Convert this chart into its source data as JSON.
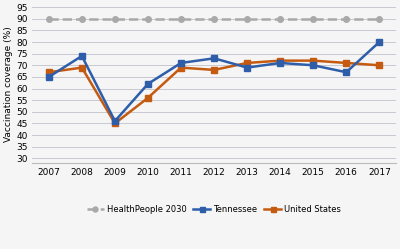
{
  "years": [
    2007,
    2008,
    2009,
    2010,
    2011,
    2012,
    2013,
    2014,
    2015,
    2016,
    2017
  ],
  "tennessee": [
    65,
    74,
    46,
    62,
    71,
    73,
    69,
    71,
    70,
    67,
    80
  ],
  "united_states": [
    67,
    69,
    45,
    56,
    69,
    68,
    71,
    72,
    72,
    71,
    70
  ],
  "health_people_2030": [
    90,
    90,
    90,
    90,
    90,
    90,
    90,
    90,
    90,
    90,
    90
  ],
  "tennessee_color": "#2E5EAA",
  "us_color": "#C55A11",
  "hp_color": "#A9A9A9",
  "ylabel": "Vaccination coverage (%)",
  "ylim": [
    28,
    96
  ],
  "yticks": [
    30,
    35,
    40,
    45,
    50,
    55,
    60,
    65,
    70,
    75,
    80,
    85,
    90,
    95
  ],
  "legend_labels": [
    "Tennessee",
    "United States",
    "HealthPeople 2030"
  ],
  "background_color": "#f5f5f5",
  "plot_bg_color": "#f5f5f5",
  "grid_color": "#c8c8d0",
  "marker_size": 4,
  "linewidth": 1.8
}
